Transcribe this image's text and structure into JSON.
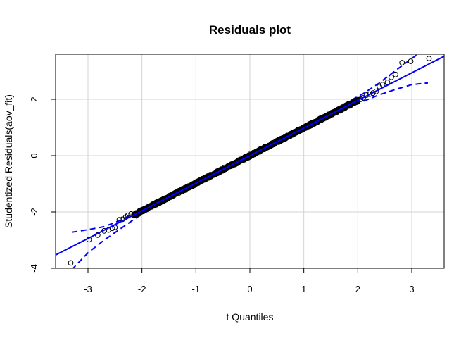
{
  "chart_data": {
    "type": "scatter",
    "title": "Residuals plot",
    "xlabel": "t Quantiles",
    "ylabel": "Studentized Residuals(aov_fit)",
    "xlim": [
      -3.6,
      3.6
    ],
    "ylim": [
      -4.0,
      3.6
    ],
    "xticks": [
      -3,
      -2,
      -1,
      0,
      1,
      2,
      3
    ],
    "yticks": [
      -4,
      -2,
      0,
      2
    ],
    "grid": true,
    "colors": {
      "points": "#000000",
      "fit_line": "#0000ff",
      "envelope": "#0000ff",
      "grid": "#d3d3d3"
    },
    "fit_line": {
      "intercept": 0.0,
      "slope": 0.98
    },
    "envelope": {
      "x": [
        -3.3,
        -3.0,
        -2.7,
        -2.4,
        -2.1,
        -1.8,
        -1.5,
        -1.0,
        -0.5,
        0.0,
        0.5,
        1.0,
        1.5,
        1.8,
        2.1,
        2.4,
        2.7,
        3.0,
        3.3
      ],
      "lower": [
        -4.05,
        -3.45,
        -3.0,
        -2.6,
        -2.2,
        -1.87,
        -1.55,
        -1.05,
        -0.53,
        -0.03,
        0.47,
        0.95,
        1.42,
        1.68,
        1.93,
        2.16,
        2.35,
        2.52,
        2.58
      ],
      "upper": [
        -2.72,
        -2.63,
        -2.52,
        -2.3,
        -2.0,
        -1.68,
        -1.38,
        -0.92,
        -0.44,
        0.03,
        0.53,
        1.05,
        1.57,
        1.89,
        2.2,
        2.58,
        3.02,
        3.45,
        3.85
      ]
    },
    "series": [
      {
        "x": [
          -3.32,
          -2.98,
          -2.82,
          -2.7,
          -2.62,
          -2.55,
          -2.5,
          -2.42,
          -2.36,
          -2.3,
          -2.26,
          -2.2
        ],
        "y": [
          -3.81,
          -2.98,
          -2.82,
          -2.67,
          -2.64,
          -2.58,
          -2.55,
          -2.28,
          -2.26,
          -2.18,
          -2.12,
          -2.07
        ]
      },
      {
        "x": [
          2.05,
          2.1,
          2.16,
          2.22,
          2.28,
          2.34,
          2.4,
          2.46,
          2.55,
          2.62,
          2.7,
          2.82,
          2.98,
          3.32
        ],
        "y": [
          2.0,
          2.05,
          2.15,
          2.18,
          2.22,
          2.28,
          2.45,
          2.52,
          2.6,
          2.78,
          2.88,
          3.3,
          3.35,
          3.45
        ]
      }
    ],
    "dense_band": {
      "x_from": -2.15,
      "x_to": 2.0,
      "count": 900
    }
  }
}
